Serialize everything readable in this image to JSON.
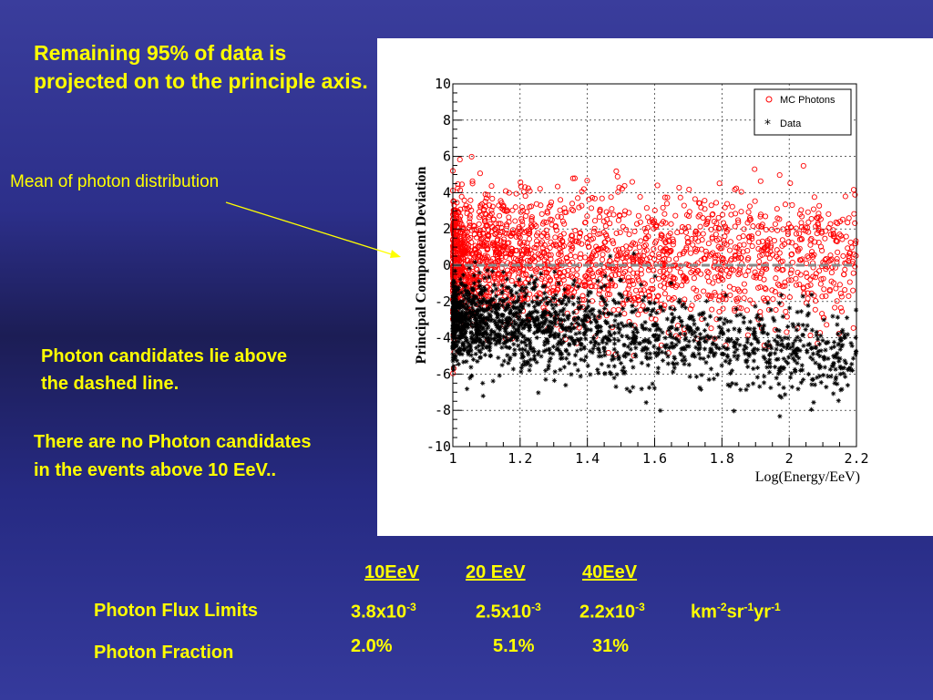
{
  "slide": {
    "heading": "Remaining 95% of data is projected on to the principle axis.",
    "mean_label": "Mean of photon distribution",
    "candidates_note": "Photon candidates lie above the dashed line.",
    "no_photon_note": "There are no Photon candidates in the events above 10 EeV..",
    "colors": {
      "text": "#ffff00",
      "mc_photons": "#ff0000",
      "data": "#000000",
      "mean_line": "#888888"
    }
  },
  "table": {
    "headers": [
      "10EeV",
      "20 EeV",
      "40EeV"
    ],
    "flux_row": {
      "label": "Photon Flux Limits",
      "values": [
        {
          "base": "3.8x10",
          "exp": "-3"
        },
        {
          "base": "2.5x10",
          "exp": "-3"
        },
        {
          "base": "2.2x10",
          "exp": "-3"
        }
      ],
      "unit": {
        "km": "km",
        "km_exp": "-2",
        "sr": "sr",
        "sr_exp": "-1",
        "yr": "yr",
        "yr_exp": "-1"
      }
    },
    "fraction_row": {
      "label": "Photon Fraction",
      "values": [
        "2.0%",
        "5.1%",
        "31%"
      ]
    }
  },
  "chart_data": {
    "type": "scatter",
    "xlabel": "Log(Energy/EeV)",
    "ylabel": "Principal Component Deviation",
    "xlim": [
      1,
      2.2
    ],
    "ylim": [
      -10,
      10
    ],
    "xticks": [
      "1",
      "1.2",
      "1.4",
      "1.6",
      "1.8",
      "2",
      "2.2"
    ],
    "yticks": [
      "10",
      "8",
      "6",
      "4",
      "2",
      "0",
      "-2",
      "-4",
      "-6",
      "-8",
      "-10"
    ],
    "grid": true,
    "legend_position": "top-right",
    "mean_line_y": 0,
    "series": [
      {
        "name": "MC Photons",
        "marker": "circle",
        "color": "#ff0000",
        "approx_points": 2000,
        "approx_mean": 0.3,
        "approx_std": 1.8
      },
      {
        "name": "Data",
        "marker": "star",
        "color": "#000000",
        "approx_points": 1800,
        "approx_mean_at_x1": -3.0,
        "approx_mean_at_x2": -5.0,
        "approx_std": 1.2
      }
    ]
  }
}
